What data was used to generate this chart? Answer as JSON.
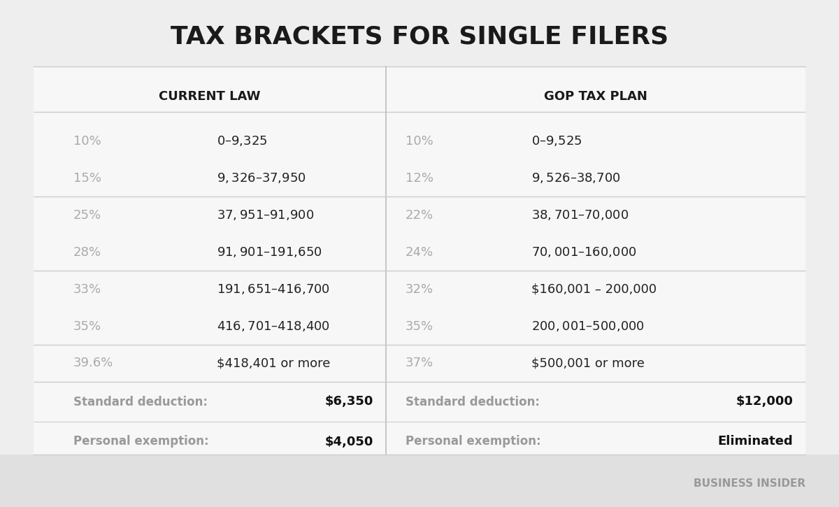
{
  "title": "TAX BRACKETS FOR SINGLE FILERS",
  "title_fontsize": 26,
  "bg_color": "#eeeeee",
  "table_bg_color": "#f7f7f7",
  "header_left": "CURRENT LAW",
  "header_right": "GOP TAX PLAN",
  "header_fontsize": 13,
  "current_law_rates": [
    "10%",
    "15%",
    "25%",
    "28%",
    "33%",
    "35%",
    "39.6%"
  ],
  "current_law_ranges": [
    "$0 – $9,325",
    "$9,326 – $37,950",
    "$37,951 – $91,900",
    "$91,901 – $191,650",
    "$191,651 – $416,700",
    "$416,701 – $418,400",
    "$418,401 or more"
  ],
  "gop_rates": [
    "10%",
    "12%",
    "22%",
    "24%",
    "32%",
    "35%",
    "37%"
  ],
  "gop_ranges": [
    "$0 – $9,525",
    "$9,526 – $38,700",
    "$38,701 – $70,000",
    "$70,001 – $160,000",
    "$160,001 – 200,000",
    "$200,001 – $500,000",
    "$500,001 or more"
  ],
  "current_std_label": "Standard deduction:",
  "current_std_value": "$6,350",
  "current_pers_label": "Personal exemption:",
  "current_pers_value": "$4,050",
  "gop_std_label": "Standard deduction:",
  "gop_std_value": "$12,000",
  "gop_pers_label": "Personal exemption:",
  "gop_pers_value": "Eliminated",
  "rate_color": "#aaaaaa",
  "range_color": "#222222",
  "label_color": "#999999",
  "value_color": "#111111",
  "divider_color": "#cccccc",
  "center_divider_color": "#bbbbbb",
  "footer_text": "BUSINESS INSIDER",
  "footer_color": "#999999",
  "row_fontsize": 13,
  "label_fontsize": 12
}
